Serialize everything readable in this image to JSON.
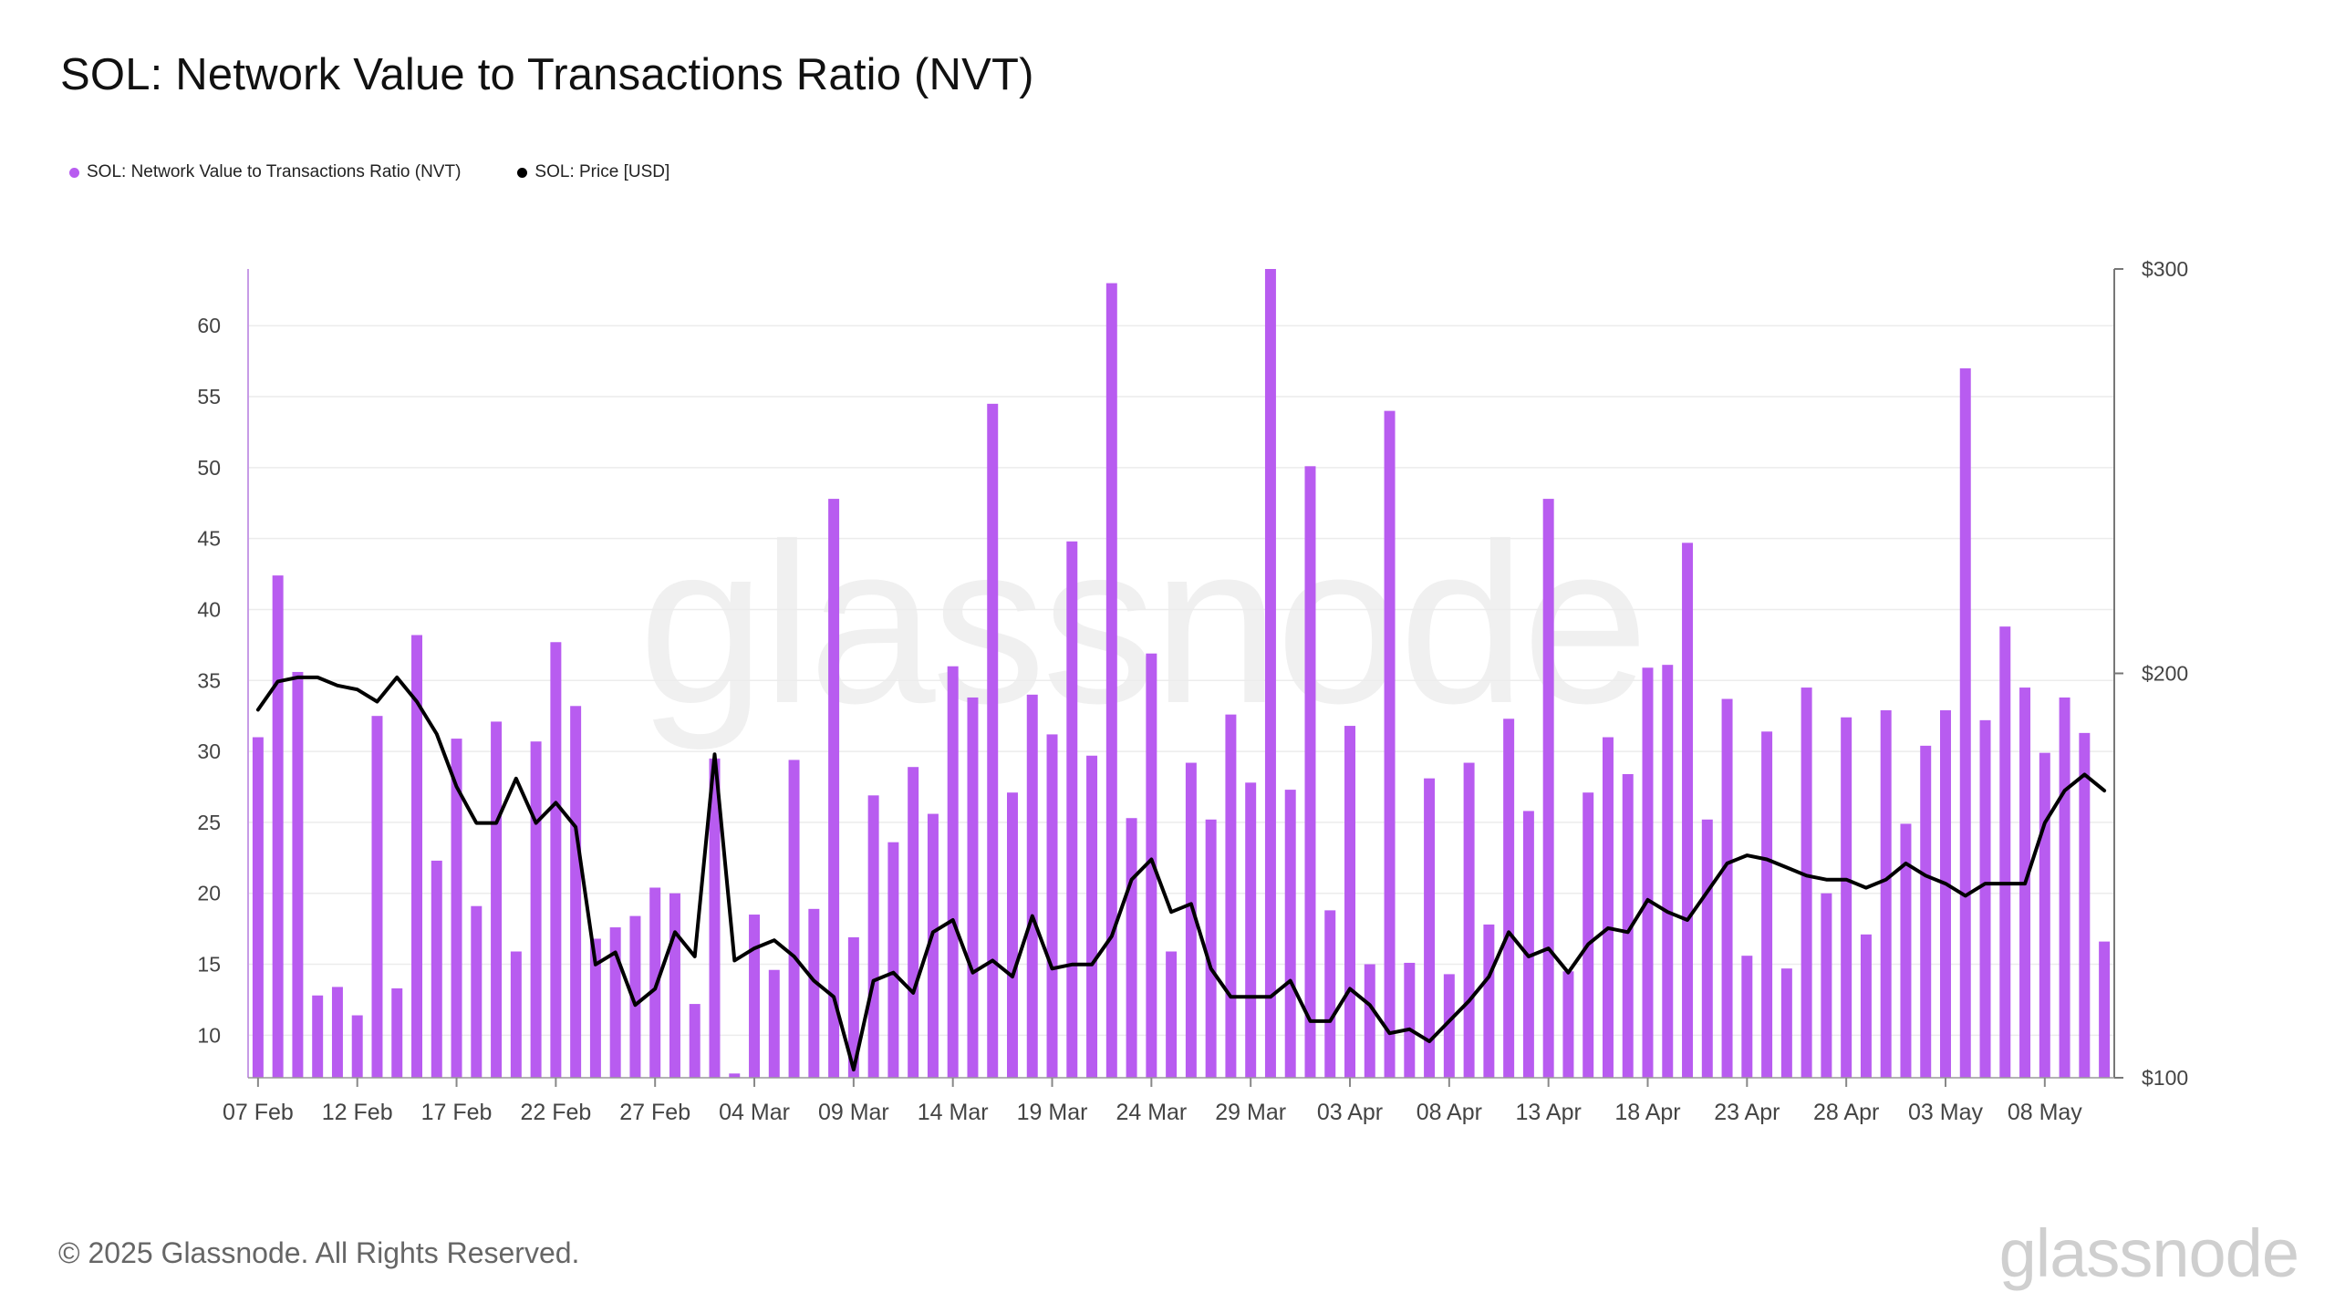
{
  "page": {
    "title": "SOL: Network Value to Transactions Ratio (NVT)",
    "footer": "© 2025 Glassnode. All Rights Reserved.",
    "brand": "glassnode",
    "watermark": "glassnode"
  },
  "colors": {
    "bar": "#b85cf0",
    "line": "#000000",
    "grid": "#ececec",
    "axis": "#666666"
  },
  "chart_data": {
    "type": "bar",
    "title": "SOL: Network Value to Transactions Ratio (NVT)",
    "legend": [
      {
        "label": "SOL: Network Value to Transactions Ratio (NVT)",
        "color": "#b85cf0"
      },
      {
        "label": "SOL: Price [USD]",
        "color": "#000000"
      }
    ],
    "y_left": {
      "ticks": [
        10,
        15,
        20,
        25,
        30,
        35,
        40,
        45,
        50,
        55,
        60
      ],
      "range": [
        7,
        64
      ]
    },
    "y_right": {
      "ticks": [
        100,
        200,
        300
      ],
      "tick_labels": [
        "$100",
        "$200",
        "$300"
      ],
      "range": [
        100,
        300
      ]
    },
    "x_ticks": [
      {
        "index": 0,
        "label": "07 Feb"
      },
      {
        "index": 5,
        "label": "12 Feb"
      },
      {
        "index": 10,
        "label": "17 Feb"
      },
      {
        "index": 15,
        "label": "22 Feb"
      },
      {
        "index": 20,
        "label": "27 Feb"
      },
      {
        "index": 25,
        "label": "04 Mar"
      },
      {
        "index": 30,
        "label": "09 Mar"
      },
      {
        "index": 35,
        "label": "14 Mar"
      },
      {
        "index": 40,
        "label": "19 Mar"
      },
      {
        "index": 45,
        "label": "24 Mar"
      },
      {
        "index": 50,
        "label": "29 Mar"
      },
      {
        "index": 55,
        "label": "03 Apr"
      },
      {
        "index": 60,
        "label": "08 Apr"
      },
      {
        "index": 65,
        "label": "13 Apr"
      },
      {
        "index": 70,
        "label": "18 Apr"
      },
      {
        "index": 75,
        "label": "23 Apr"
      },
      {
        "index": 80,
        "label": "28 Apr"
      },
      {
        "index": 85,
        "label": "03 May"
      },
      {
        "index": 90,
        "label": "08 May"
      }
    ],
    "series": [
      {
        "name": "SOL: Network Value to Transactions Ratio (NVT)",
        "type": "bar",
        "axis": "left",
        "values": [
          31.0,
          42.4,
          35.6,
          12.8,
          13.4,
          11.4,
          32.5,
          13.3,
          38.2,
          22.3,
          30.9,
          19.1,
          32.1,
          15.9,
          30.7,
          37.7,
          33.2,
          16.8,
          17.6,
          18.4,
          20.4,
          20.0,
          12.2,
          29.5,
          7.3,
          18.5,
          14.6,
          29.4,
          18.9,
          47.8,
          16.9,
          26.9,
          23.6,
          28.9,
          25.6,
          36.0,
          33.8,
          54.5,
          27.1,
          34.0,
          31.2,
          44.8,
          29.7,
          63.0,
          25.3,
          36.9,
          15.9,
          29.2,
          25.2,
          32.6,
          27.8,
          64.0,
          27.3,
          50.1,
          18.8,
          31.8,
          15.0,
          54.0,
          15.1,
          28.1,
          14.3,
          29.2,
          17.8,
          32.3,
          25.8,
          47.8,
          14.5,
          27.1,
          31.0,
          28.4,
          35.9,
          36.1,
          44.7,
          25.2,
          33.7,
          15.6,
          31.4,
          14.7,
          34.5,
          20.0,
          32.4,
          17.1,
          32.9,
          24.9,
          30.4,
          32.9,
          57.0,
          32.2,
          38.8,
          34.5,
          29.9,
          33.8,
          31.3,
          16.6
        ]
      },
      {
        "name": "SOL: Price [USD]",
        "type": "line",
        "axis": "right",
        "values": [
          191,
          198,
          199,
          199,
          197,
          196,
          193,
          199,
          193,
          185,
          172,
          163,
          163,
          174,
          163,
          168,
          162,
          128,
          131,
          118,
          122,
          136,
          130,
          180,
          129,
          132,
          134,
          130,
          124,
          120,
          102,
          124,
          126,
          121,
          136,
          139,
          126,
          129,
          125,
          140,
          127,
          128,
          128,
          135,
          149,
          154,
          141,
          143,
          127,
          120,
          120,
          120,
          124,
          114,
          114,
          122,
          118,
          111,
          112,
          109,
          114,
          119,
          125,
          136,
          130,
          132,
          126,
          133,
          137,
          136,
          144,
          141,
          139,
          146,
          153,
          155,
          154,
          152,
          150,
          149,
          149,
          147,
          149,
          153,
          150,
          148,
          145,
          148,
          148,
          148,
          163,
          171,
          175,
          171
        ]
      }
    ]
  }
}
